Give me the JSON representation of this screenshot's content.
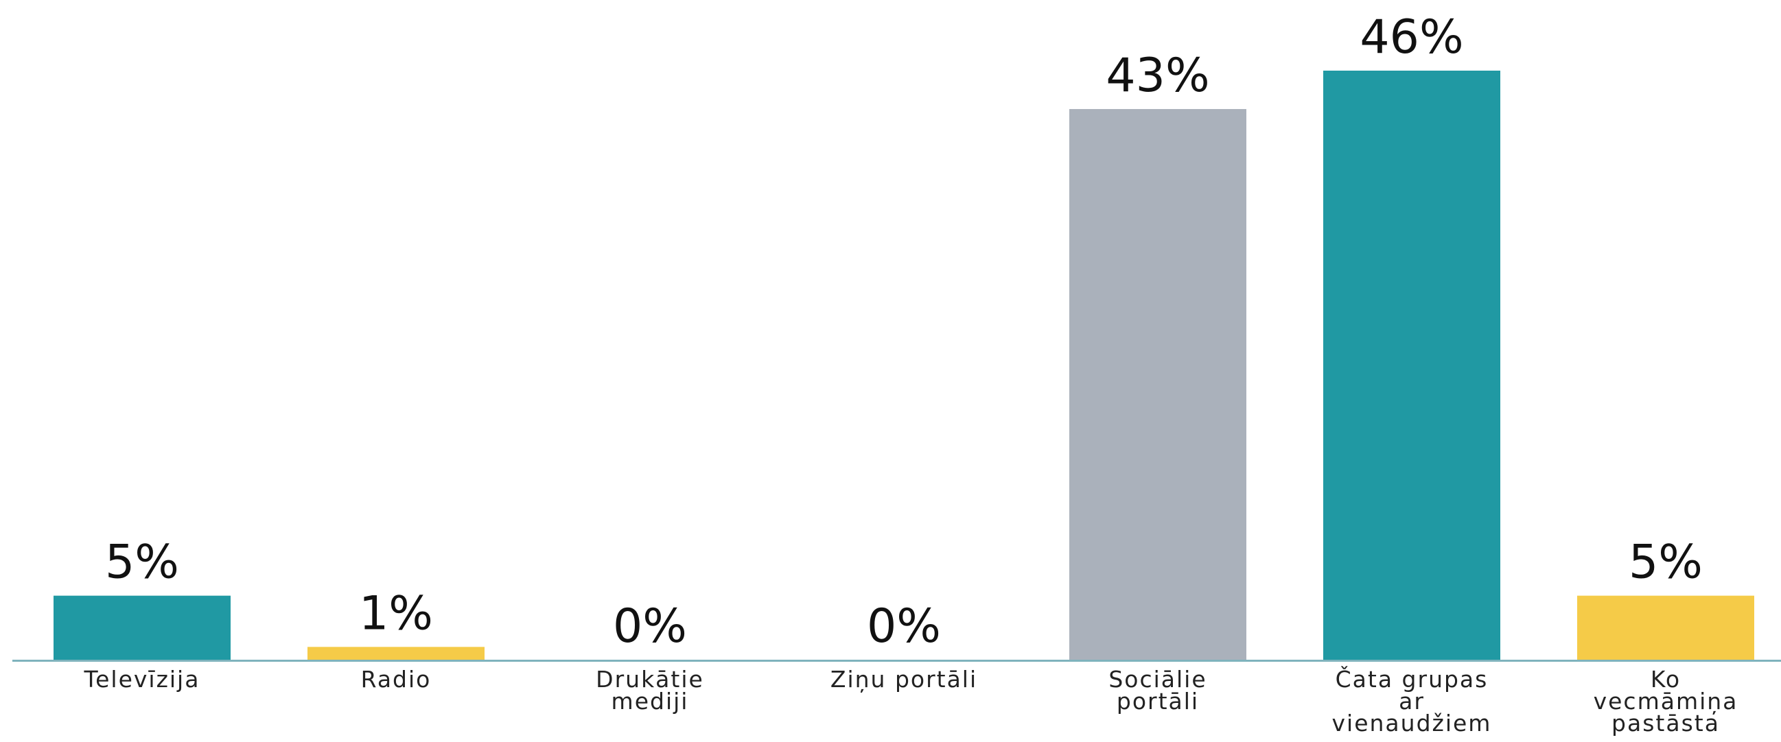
{
  "chart_data": {
    "type": "bar",
    "title": "",
    "xlabel": "",
    "ylabel": "",
    "ylim": [
      0,
      46
    ],
    "grid": false,
    "legend": false,
    "categories": [
      [
        "Televīzija"
      ],
      [
        "Radio"
      ],
      [
        "Drukātie",
        "mediji"
      ],
      [
        "Ziņu portāli"
      ],
      [
        "Sociālie",
        "portāli"
      ],
      [
        "Čata grupas",
        "ar",
        "vienaudžiem"
      ],
      [
        "Ko",
        "vecmāmiņa",
        "pastāsta"
      ]
    ],
    "values": [
      5,
      1,
      0,
      0,
      43,
      46,
      5
    ],
    "value_labels": [
      "5%",
      "1%",
      "0%",
      "0%",
      "43%",
      "46%",
      "5%"
    ],
    "colors": [
      "#2099a3",
      "#f5cb48",
      "#2099a3",
      "#2099a3",
      "#aab1bb",
      "#2099a3",
      "#f5cb48"
    ],
    "axis_color": "#7fb3bd"
  }
}
